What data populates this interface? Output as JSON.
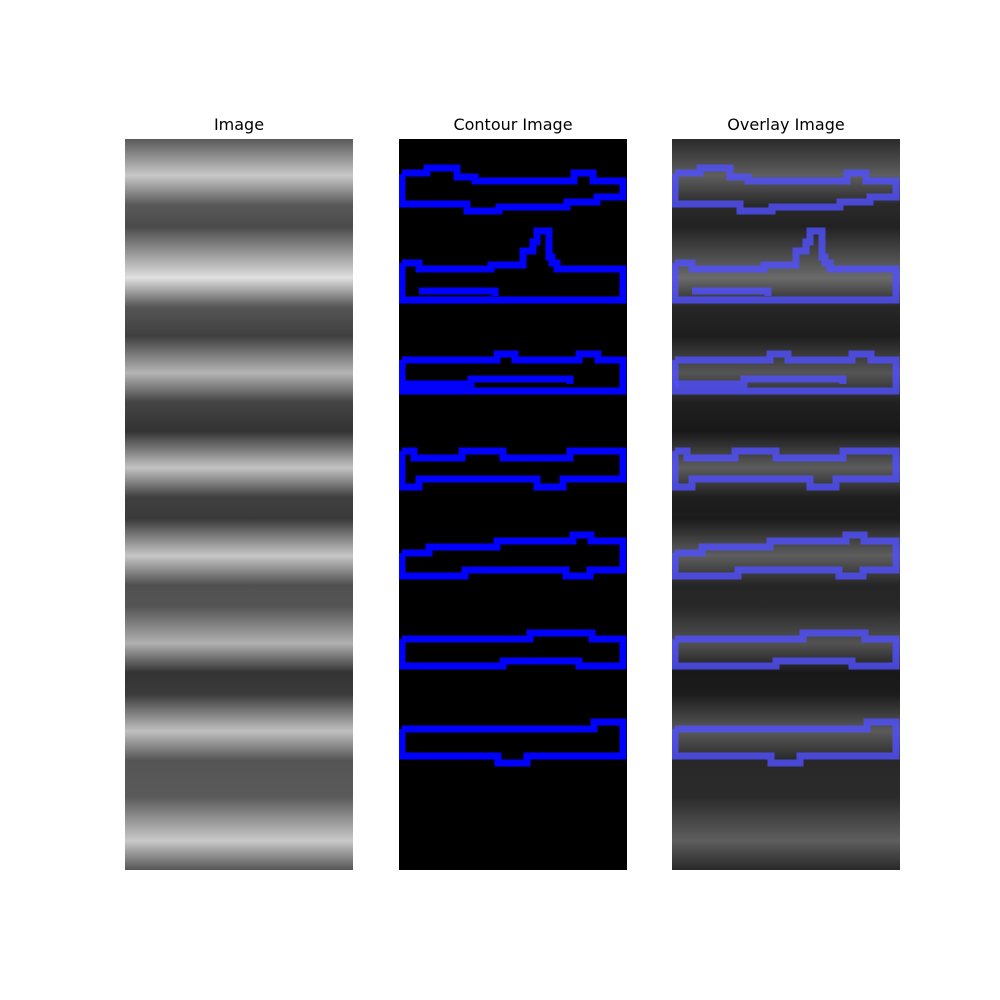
{
  "panels": [
    {
      "title": "Image"
    },
    {
      "title": "Contour Image"
    },
    {
      "title": "Overlay Image"
    }
  ],
  "colors": {
    "contour": "#0000ff",
    "contour_background": "#000000",
    "page_background": "#ffffff"
  }
}
